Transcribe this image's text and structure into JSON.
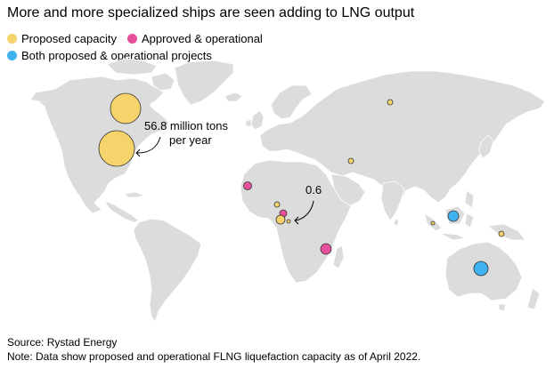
{
  "title": "More and more specialized ships are seen adding to LNG output",
  "legend": [
    {
      "label": "Proposed capacity",
      "color": "#f6d36b"
    },
    {
      "label": "Approved & operational",
      "color": "#e7509c"
    },
    {
      "label": "Both proposed & operational projects",
      "color": "#3fb2ef"
    }
  ],
  "annotations": {
    "large_label_line1": "56.8 million tons",
    "large_label_line2": "per year",
    "small_label": "0.6"
  },
  "footer": {
    "source": "Source: Rystad Energy",
    "note": "Note: Data show proposed and operational FLNG liquefaction capacity as of April 2022."
  }
}
